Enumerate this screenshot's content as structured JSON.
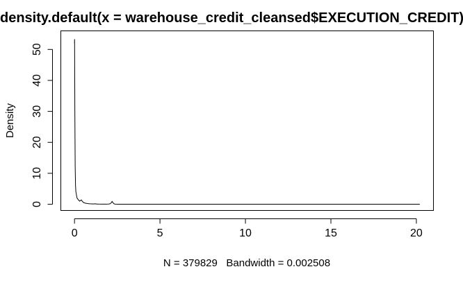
{
  "chart_data": {
    "type": "line",
    "title": "density.default(x = warehouse_credit_cleansed$EXECUTION_CREDIT)",
    "xlabel": "N = 379829   Bandwidth = 0.002508",
    "ylabel": "Density",
    "xlim": [
      -0.8,
      21.0
    ],
    "ylim": [
      -2.0,
      56.0
    ],
    "xticks": [
      0,
      5,
      10,
      15,
      20
    ],
    "yticks": [
      0,
      10,
      20,
      30,
      40,
      50
    ],
    "grid": false,
    "legend": "none",
    "series": [
      {
        "x": [
          0.0,
          0.005,
          0.01,
          0.02,
          0.04,
          0.06,
          0.08,
          0.1,
          0.12,
          0.15,
          0.2,
          0.25,
          0.3,
          0.35,
          0.4,
          0.45,
          0.5,
          0.55,
          0.6,
          0.7,
          0.8,
          0.9,
          1.0,
          1.1,
          1.2,
          1.3,
          1.4,
          1.6,
          1.8,
          2.0,
          2.1,
          2.15,
          2.2,
          2.25,
          2.3,
          2.35,
          2.4,
          2.6,
          3.0,
          4.0,
          5.0,
          6.0,
          8.0,
          9.0,
          10.0,
          12.0,
          15.0,
          18.0,
          20.2
        ],
        "y": [
          52.0,
          53.3,
          45.0,
          30.0,
          12.0,
          6.0,
          4.0,
          3.5,
          2.8,
          2.0,
          1.6,
          1.3,
          1.0,
          1.2,
          1.4,
          1.0,
          0.7,
          0.5,
          0.4,
          0.3,
          0.2,
          0.15,
          0.12,
          0.1,
          0.15,
          0.08,
          0.06,
          0.05,
          0.05,
          0.08,
          0.2,
          0.5,
          0.9,
          0.5,
          0.2,
          0.08,
          0.05,
          0.03,
          0.02,
          0.01,
          0.01,
          0.01,
          0.01,
          0.02,
          0.01,
          0.01,
          0.01,
          0.01,
          0.01
        ]
      }
    ]
  }
}
